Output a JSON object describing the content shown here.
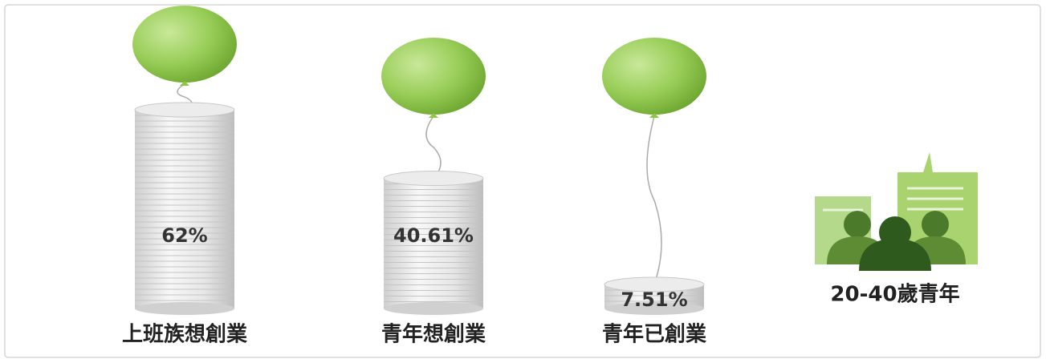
{
  "chart_data": {
    "type": "bar",
    "categories": [
      "上班族想創業",
      "青年想創業",
      "青年已創業"
    ],
    "values": [
      62,
      40.61,
      7.51
    ],
    "value_labels": [
      "62%",
      "40.61%",
      "7.51%"
    ],
    "color": "#8dc63f",
    "annotation": "20-40歲青年"
  }
}
